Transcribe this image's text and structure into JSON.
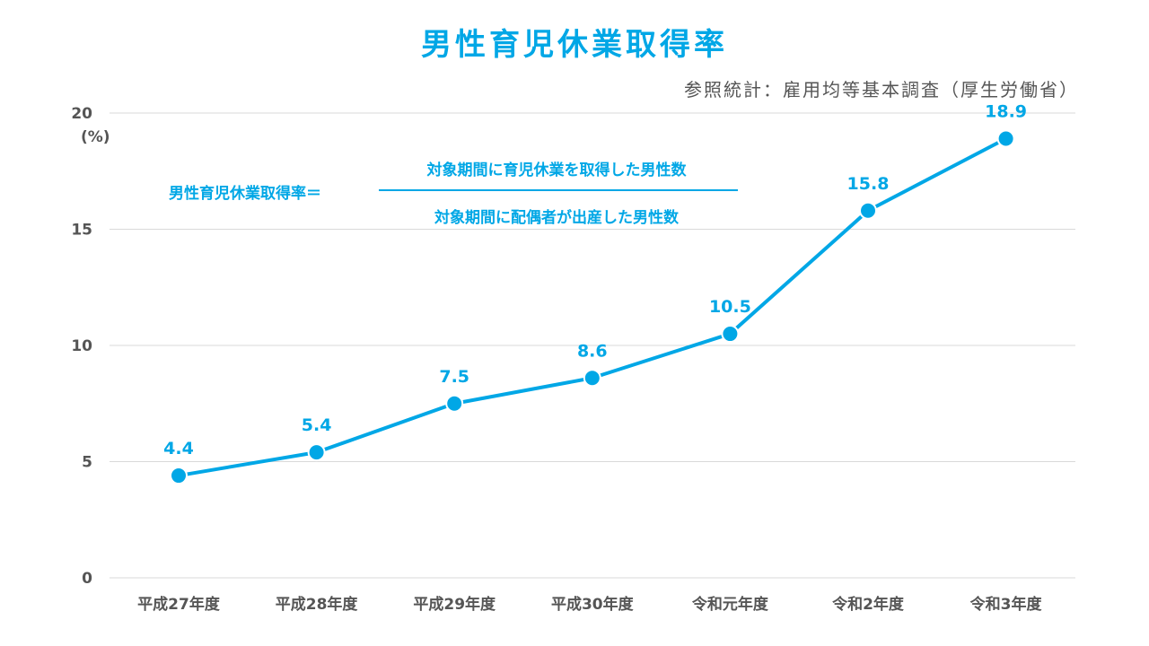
{
  "header": {
    "title": "男性育児休業取得率",
    "source": "参照統計：雇用均等基本調査（厚生労働省）"
  },
  "formula": {
    "left": "男性育児休業取得率＝",
    "numerator": "対象期間に育児休業を取得した男性数",
    "denominator": "対象期間に配偶者が出産した男性数"
  },
  "chart_data": {
    "type": "line",
    "title": "男性育児休業取得率",
    "ylabel": "(%)",
    "xlabel": "",
    "ylim": [
      0,
      20
    ],
    "yticks": [
      0,
      5,
      10,
      15,
      20
    ],
    "grid": true,
    "categories": [
      "平成27年度",
      "平成28年度",
      "平成29年度",
      "平成30年度",
      "令和元年度",
      "令和2年度",
      "令和3年度"
    ],
    "series": [
      {
        "values": [
          4.4,
          5.4,
          7.5,
          8.6,
          10.5,
          15.8,
          18.9
        ],
        "labels": [
          "4.4",
          "5.4",
          "7.5",
          "8.6",
          "10.5",
          "15.8",
          "18.9"
        ],
        "color": "#00a7e6"
      }
    ],
    "colors": {
      "grid": "#d9d9d9",
      "axis_text": "#555555"
    }
  }
}
